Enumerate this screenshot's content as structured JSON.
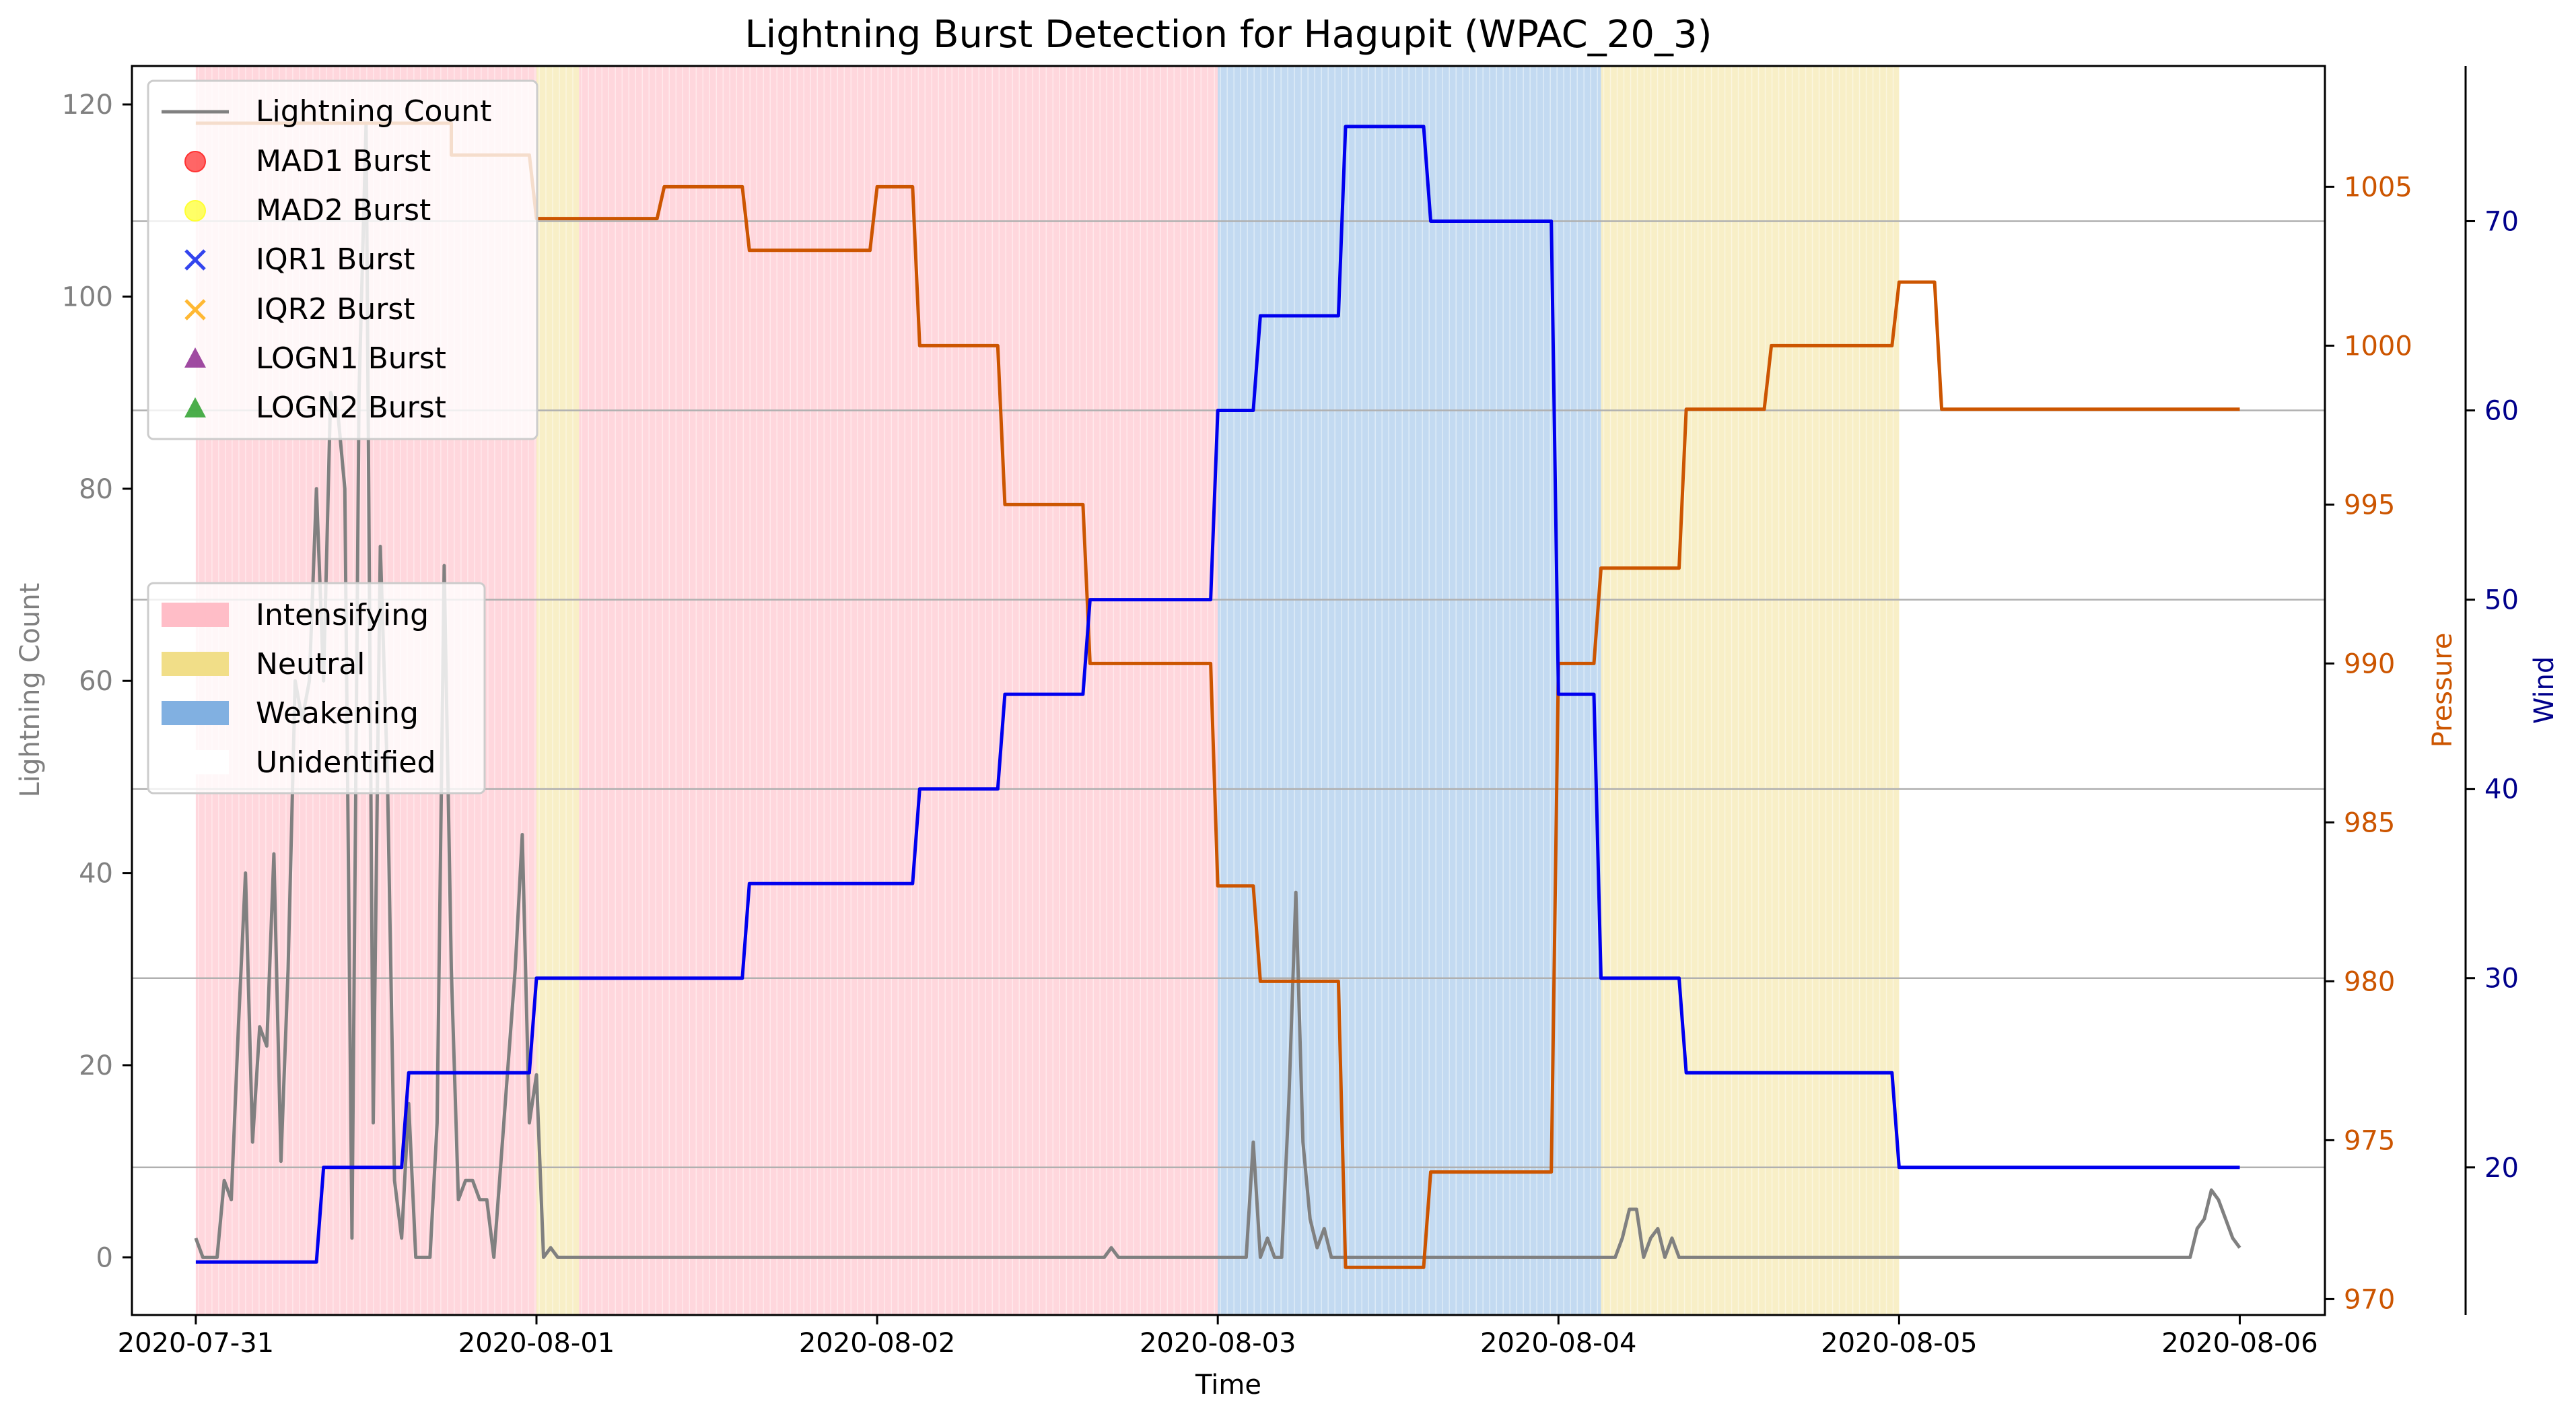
{
  "chart_data": {
    "type": "line",
    "title": "Lightning Burst Detection for Hagupit (WPAC_20_3)",
    "xlabel": "Time",
    "ylabel_left": "Lightning Count",
    "ylabel_pressure": "Pressure",
    "ylabel_wind": "Wind",
    "x_range": [
      "2020-07-30T19:30",
      "2020-08-06T06:00"
    ],
    "x_ticks": [
      "2020-07-31",
      "2020-08-01",
      "2020-08-02",
      "2020-08-03",
      "2020-08-04",
      "2020-08-05",
      "2020-08-06"
    ],
    "ylim_left": [
      -6,
      124
    ],
    "yticks_left": [
      0,
      20,
      40,
      60,
      80,
      100,
      120
    ],
    "ylim_pressure": [
      969.5,
      1008.8
    ],
    "yticks_pressure": [
      970,
      975,
      980,
      985,
      990,
      995,
      1000,
      1005
    ],
    "ylim_wind": [
      12.2,
      78.2
    ],
    "yticks_wind": [
      20,
      30,
      40,
      50,
      60,
      70
    ],
    "grid": "horizontal lines at wind ticks",
    "colors": {
      "lightning": "#808080",
      "pressure": "#cc5500",
      "wind": "#0000ee",
      "intensifying": "#ffb6c1",
      "neutral": "#f0dc82",
      "weakening": "#7aacdf",
      "pressure_axis": "#cc5500",
      "wind_axis": "#00008b",
      "left_axis": "#808080"
    },
    "phases": [
      {
        "start": "2020-07-31T00:00",
        "end": "2020-08-01T00:00",
        "phase": "Intensifying"
      },
      {
        "start": "2020-08-01T00:00",
        "end": "2020-08-01T03:00",
        "phase": "Neutral"
      },
      {
        "start": "2020-08-01T03:00",
        "end": "2020-08-03T00:00",
        "phase": "Intensifying"
      },
      {
        "start": "2020-08-03T00:00",
        "end": "2020-08-04T03:00",
        "phase": "Weakening"
      },
      {
        "start": "2020-08-04T03:00",
        "end": "2020-08-05T00:00",
        "phase": "Neutral"
      }
    ],
    "series": [
      {
        "name": "Lightning Count",
        "axis": "left",
        "points": [
          [
            "2020-07-31T00:00",
            2
          ],
          [
            "2020-07-31T00:30",
            0
          ],
          [
            "2020-07-31T01:00",
            0
          ],
          [
            "2020-07-31T01:30",
            0
          ],
          [
            "2020-07-31T02:00",
            8
          ],
          [
            "2020-07-31T02:30",
            6
          ],
          [
            "2020-07-31T03:00",
            24
          ],
          [
            "2020-07-31T03:30",
            40
          ],
          [
            "2020-07-31T04:00",
            12
          ],
          [
            "2020-07-31T04:30",
            24
          ],
          [
            "2020-07-31T05:00",
            22
          ],
          [
            "2020-07-31T05:30",
            42
          ],
          [
            "2020-07-31T06:00",
            10
          ],
          [
            "2020-07-31T06:30",
            30
          ],
          [
            "2020-07-31T07:00",
            60
          ],
          [
            "2020-07-31T07:30",
            56
          ],
          [
            "2020-07-31T08:00",
            60
          ],
          [
            "2020-07-31T08:30",
            80
          ],
          [
            "2020-07-31T09:00",
            60
          ],
          [
            "2020-07-31T09:30",
            90
          ],
          [
            "2020-07-31T10:00",
            88
          ],
          [
            "2020-07-31T10:30",
            80
          ],
          [
            "2020-07-31T11:00",
            2
          ],
          [
            "2020-07-31T11:30",
            90
          ],
          [
            "2020-07-31T12:00",
            118
          ],
          [
            "2020-07-31T12:30",
            14
          ],
          [
            "2020-07-31T13:00",
            74
          ],
          [
            "2020-07-31T13:30",
            50
          ],
          [
            "2020-07-31T14:00",
            8
          ],
          [
            "2020-07-31T14:30",
            2
          ],
          [
            "2020-07-31T15:00",
            16
          ],
          [
            "2020-07-31T15:30",
            0
          ],
          [
            "2020-07-31T16:00",
            0
          ],
          [
            "2020-07-31T16:30",
            0
          ],
          [
            "2020-07-31T17:00",
            14
          ],
          [
            "2020-07-31T17:30",
            72
          ],
          [
            "2020-07-31T18:00",
            30
          ],
          [
            "2020-07-31T18:30",
            6
          ],
          [
            "2020-07-31T19:00",
            8
          ],
          [
            "2020-07-31T19:30",
            8
          ],
          [
            "2020-07-31T20:00",
            6
          ],
          [
            "2020-07-31T20:30",
            6
          ],
          [
            "2020-07-31T21:00",
            0
          ],
          [
            "2020-07-31T21:30",
            10
          ],
          [
            "2020-07-31T22:00",
            20
          ],
          [
            "2020-07-31T22:30",
            30
          ],
          [
            "2020-07-31T23:00",
            44
          ],
          [
            "2020-07-31T23:30",
            14
          ],
          [
            "2020-08-01T00:00",
            19
          ],
          [
            "2020-08-01T00:30",
            0
          ],
          [
            "2020-08-01T01:00",
            1
          ],
          [
            "2020-08-01T01:30",
            0
          ],
          [
            "2020-08-02T16:00",
            0
          ],
          [
            "2020-08-02T16:30",
            1
          ],
          [
            "2020-08-02T17:00",
            0
          ],
          [
            "2020-08-03T02:00",
            0
          ],
          [
            "2020-08-03T02:30",
            12
          ],
          [
            "2020-08-03T03:00",
            0
          ],
          [
            "2020-08-03T03:30",
            2
          ],
          [
            "2020-08-03T04:00",
            0
          ],
          [
            "2020-08-03T04:30",
            0
          ],
          [
            "2020-08-03T05:00",
            16
          ],
          [
            "2020-08-03T05:30",
            38
          ],
          [
            "2020-08-03T06:00",
            12
          ],
          [
            "2020-08-03T06:30",
            4
          ],
          [
            "2020-08-03T07:00",
            1
          ],
          [
            "2020-08-03T07:30",
            3
          ],
          [
            "2020-08-03T08:00",
            0
          ],
          [
            "2020-08-04T04:00",
            0
          ],
          [
            "2020-08-04T04:30",
            2
          ],
          [
            "2020-08-04T05:00",
            5
          ],
          [
            "2020-08-04T05:30",
            5
          ],
          [
            "2020-08-04T06:00",
            0
          ],
          [
            "2020-08-04T06:30",
            2
          ],
          [
            "2020-08-04T07:00",
            3
          ],
          [
            "2020-08-04T07:30",
            0
          ],
          [
            "2020-08-04T08:00",
            2
          ],
          [
            "2020-08-04T08:30",
            0
          ],
          [
            "2020-08-05T20:30",
            0
          ],
          [
            "2020-08-05T21:00",
            3
          ],
          [
            "2020-08-05T21:30",
            4
          ],
          [
            "2020-08-05T22:00",
            7
          ],
          [
            "2020-08-05T22:30",
            6
          ],
          [
            "2020-08-05T23:00",
            4
          ],
          [
            "2020-08-05T23:30",
            2
          ],
          [
            "2020-08-06T00:00",
            1
          ]
        ]
      },
      {
        "name": "Pressure",
        "axis": "pressure",
        "points": [
          [
            "2020-07-31T00:00",
            1007
          ],
          [
            "2020-07-31T18:00",
            1007
          ],
          [
            "2020-07-31T18:00",
            1006
          ],
          [
            "2020-07-31T23:30",
            1006
          ],
          [
            "2020-08-01T00:00",
            1004
          ],
          [
            "2020-08-01T08:30",
            1004
          ],
          [
            "2020-08-01T09:00",
            1005
          ],
          [
            "2020-08-01T14:30",
            1005
          ],
          [
            "2020-08-01T15:00",
            1003
          ],
          [
            "2020-08-01T23:30",
            1003
          ],
          [
            "2020-08-02T00:00",
            1005
          ],
          [
            "2020-08-02T02:30",
            1005
          ],
          [
            "2020-08-02T03:00",
            1000
          ],
          [
            "2020-08-02T08:30",
            1000
          ],
          [
            "2020-08-02T09:00",
            995
          ],
          [
            "2020-08-02T14:30",
            995
          ],
          [
            "2020-08-02T15:00",
            990
          ],
          [
            "2020-08-02T23:30",
            990
          ],
          [
            "2020-08-03T00:00",
            983
          ],
          [
            "2020-08-03T02:30",
            983
          ],
          [
            "2020-08-03T03:00",
            980
          ],
          [
            "2020-08-03T08:30",
            980
          ],
          [
            "2020-08-03T09:00",
            971
          ],
          [
            "2020-08-03T14:30",
            971
          ],
          [
            "2020-08-03T15:00",
            974
          ],
          [
            "2020-08-03T23:30",
            974
          ],
          [
            "2020-08-04T00:00",
            990
          ],
          [
            "2020-08-04T02:30",
            990
          ],
          [
            "2020-08-04T03:00",
            993
          ],
          [
            "2020-08-04T08:30",
            993
          ],
          [
            "2020-08-04T09:00",
            998
          ],
          [
            "2020-08-04T14:30",
            998
          ],
          [
            "2020-08-04T15:00",
            1000
          ],
          [
            "2020-08-04T23:30",
            1000
          ],
          [
            "2020-08-05T00:00",
            1002
          ],
          [
            "2020-08-05T02:30",
            1002
          ],
          [
            "2020-08-05T03:00",
            998
          ],
          [
            "2020-08-06T00:00",
            998
          ]
        ]
      },
      {
        "name": "Wind",
        "axis": "wind",
        "points": [
          [
            "2020-07-31T00:00",
            15
          ],
          [
            "2020-07-31T08:30",
            15
          ],
          [
            "2020-07-31T09:00",
            20
          ],
          [
            "2020-07-31T14:30",
            20
          ],
          [
            "2020-07-31T15:00",
            25
          ],
          [
            "2020-07-31T23:30",
            25
          ],
          [
            "2020-08-01T00:00",
            30
          ],
          [
            "2020-08-01T14:30",
            30
          ],
          [
            "2020-08-01T15:00",
            35
          ],
          [
            "2020-08-02T02:30",
            35
          ],
          [
            "2020-08-02T03:00",
            40
          ],
          [
            "2020-08-02T08:30",
            40
          ],
          [
            "2020-08-02T09:00",
            45
          ],
          [
            "2020-08-02T14:30",
            45
          ],
          [
            "2020-08-02T15:00",
            50
          ],
          [
            "2020-08-02T23:30",
            50
          ],
          [
            "2020-08-03T00:00",
            60
          ],
          [
            "2020-08-03T02:30",
            60
          ],
          [
            "2020-08-03T03:00",
            65
          ],
          [
            "2020-08-03T08:30",
            65
          ],
          [
            "2020-08-03T09:00",
            75
          ],
          [
            "2020-08-03T14:30",
            75
          ],
          [
            "2020-08-03T15:00",
            70
          ],
          [
            "2020-08-03T23:30",
            70
          ],
          [
            "2020-08-04T00:00",
            45
          ],
          [
            "2020-08-04T02:30",
            45
          ],
          [
            "2020-08-04T03:00",
            30
          ],
          [
            "2020-08-04T08:30",
            30
          ],
          [
            "2020-08-04T09:00",
            25
          ],
          [
            "2020-08-04T23:30",
            25
          ],
          [
            "2020-08-05T00:00",
            20
          ],
          [
            "2020-08-06T00:00",
            20
          ]
        ]
      }
    ],
    "legend_markers": {
      "position": "upper-left",
      "entries": [
        {
          "label": "Lightning Count",
          "marker": "line",
          "color": "#808080"
        },
        {
          "label": "MAD1 Burst",
          "marker": "circle",
          "color": "#ff3333"
        },
        {
          "label": "MAD2 Burst",
          "marker": "circle",
          "color": "#ffff33"
        },
        {
          "label": "IQR1 Burst",
          "marker": "x",
          "color": "#3344ee"
        },
        {
          "label": "IQR2 Burst",
          "marker": "x",
          "color": "#ffb833"
        },
        {
          "label": "LOGN1 Burst",
          "marker": "triangle",
          "color": "#8e2a90"
        },
        {
          "label": "LOGN2 Burst",
          "marker": "triangle",
          "color": "#2ca02c"
        }
      ]
    },
    "legend_phases": {
      "position": "center-left",
      "entries": [
        {
          "label": "Intensifying",
          "color": "#ffb6c1"
        },
        {
          "label": "Neutral",
          "color": "#f0dc82"
        },
        {
          "label": "Weakening",
          "color": "#7aacdf"
        },
        {
          "label": "Unidentified",
          "color": "#ffffff"
        }
      ]
    }
  }
}
